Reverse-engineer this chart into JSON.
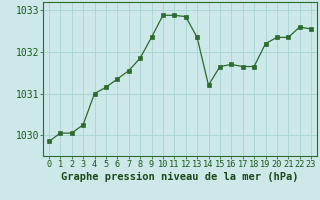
{
  "x": [
    0,
    1,
    2,
    3,
    4,
    5,
    6,
    7,
    8,
    9,
    10,
    11,
    12,
    13,
    14,
    15,
    16,
    17,
    18,
    19,
    20,
    21,
    22,
    23
  ],
  "y": [
    1029.85,
    1030.05,
    1030.05,
    1030.25,
    1031.0,
    1031.15,
    1031.35,
    1031.55,
    1031.85,
    1032.35,
    1032.88,
    1032.88,
    1032.85,
    1032.35,
    1031.2,
    1031.65,
    1031.7,
    1031.65,
    1031.65,
    1032.2,
    1032.35,
    1032.35,
    1032.6,
    1032.55
  ],
  "ylim_min": 1029.5,
  "ylim_max": 1033.2,
  "yticks": [
    1030,
    1031,
    1032,
    1033
  ],
  "xticks": [
    0,
    1,
    2,
    3,
    4,
    5,
    6,
    7,
    8,
    9,
    10,
    11,
    12,
    13,
    14,
    15,
    16,
    17,
    18,
    19,
    20,
    21,
    22,
    23
  ],
  "line_color": "#2d6a2d",
  "marker_color": "#2d6a2d",
  "bg_color": "#cce8e8",
  "grid_color": "#a8d4d4",
  "xlabel": "Graphe pression niveau de la mer (hPa)",
  "xlabel_color": "#1a4a1a",
  "tick_color": "#1a5a1a",
  "spine_color": "#2d6a2d",
  "font_size_xlabel": 7.5,
  "font_size_ytick": 7.0,
  "font_size_xtick": 6.2
}
